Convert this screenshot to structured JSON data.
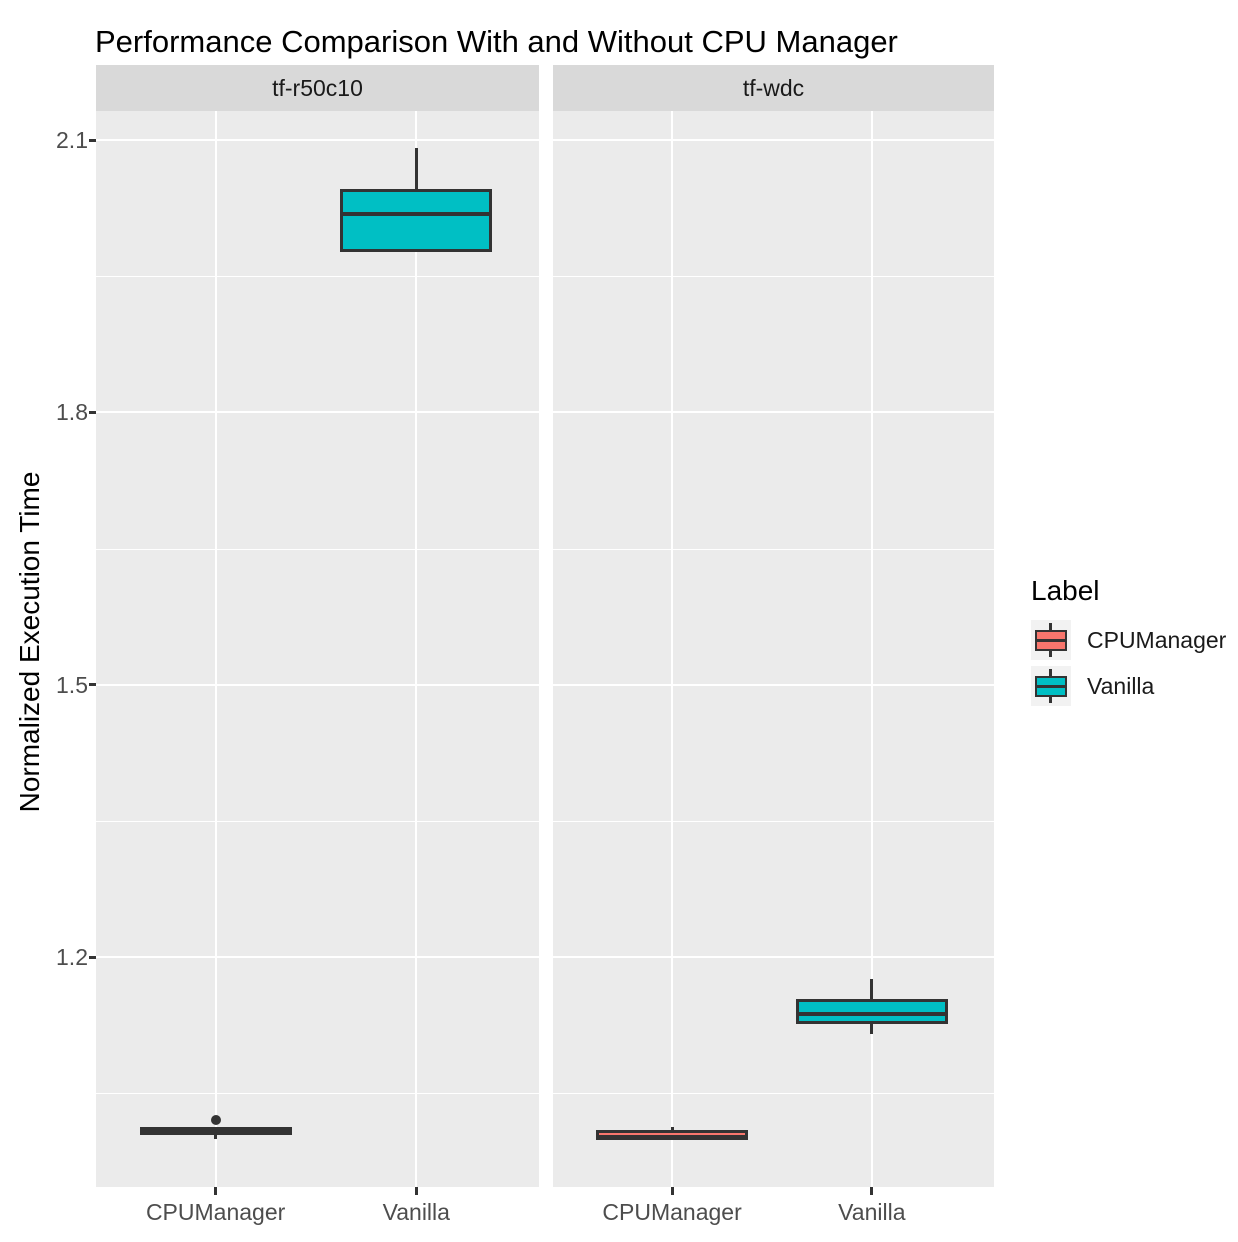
{
  "chart_data": {
    "type": "boxplot",
    "title": "Performance Comparison With and Without CPU Manager",
    "xlabel": "",
    "ylabel": "Normalized Execution Time",
    "x_categories": [
      "CPUManager",
      "Vanilla"
    ],
    "y_major_ticks": [
      {
        "value": 2.1,
        "label": "2.1"
      },
      {
        "value": 1.8,
        "label": "1.8"
      },
      {
        "value": 1.5,
        "label": "1.5"
      },
      {
        "value": 1.2,
        "label": "1.2"
      }
    ],
    "y_minor_ticks": [
      1.95,
      1.65,
      1.35,
      1.05
    ],
    "ylim": [
      0.947,
      2.132
    ],
    "grid": true,
    "legend_position": "right",
    "facets": [
      {
        "label": "tf-r50c10",
        "groups": [
          {
            "category": "CPUManager",
            "fill": "#F8766D",
            "stats": {
              "whisker_low": 1.0,
              "q1": 1.004,
              "median": 1.009,
              "q3": 1.013,
              "whisker_high": 1.013
            },
            "outliers": [
              1.021
            ]
          },
          {
            "category": "Vanilla",
            "fill": "#00BFC4",
            "stats": {
              "whisker_low": 1.977,
              "q1": 1.977,
              "median": 2.019,
              "q3": 2.046,
              "whisker_high": 2.091
            },
            "outliers": []
          }
        ]
      },
      {
        "label": "tf-wdc",
        "groups": [
          {
            "category": "CPUManager",
            "fill": "#F8766D",
            "stats": {
              "whisker_low": 0.999,
              "q1": 0.999,
              "median": 1.002,
              "q3": 1.01,
              "whisker_high": 1.013
            },
            "outliers": []
          },
          {
            "category": "Vanilla",
            "fill": "#00BFC4",
            "stats": {
              "whisker_low": 1.116,
              "q1": 1.127,
              "median": 1.137,
              "q3": 1.154,
              "whisker_high": 1.176
            },
            "outliers": []
          }
        ]
      }
    ],
    "legend": {
      "title": "Label",
      "entries": [
        {
          "label": "CPUManager",
          "color": "#F8766D"
        },
        {
          "label": "Vanilla",
          "color": "#00BFC4"
        }
      ]
    },
    "colors": {
      "cpumanager_fill": "#F8766D",
      "vanilla_fill": "#00BFC4",
      "box_border": "#333333",
      "panel_background": "#EBEBEB",
      "strip_background": "#D9D9D9",
      "gridline": "#FFFFFF",
      "axis_text": "#4D4D4D",
      "legend_key_background": "#F2F2F2"
    }
  }
}
